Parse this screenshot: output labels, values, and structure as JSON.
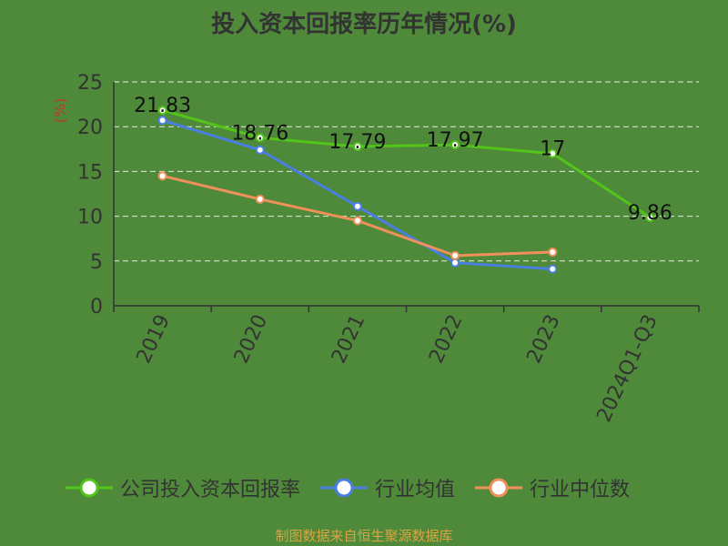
{
  "chart_data": {
    "type": "line",
    "title": "投入资本回报率历年情况(%)",
    "ylabel": "(%)",
    "xlabel": "",
    "categories": [
      "2019",
      "2020",
      "2021",
      "2022",
      "2023",
      "2024Q1-Q3"
    ],
    "ylim": [
      0,
      25
    ],
    "yticks": [
      0,
      5,
      10,
      15,
      20,
      25
    ],
    "grid": true,
    "legend_position": "bottom",
    "series": [
      {
        "name": "公司投入资本回报率",
        "values": [
          21.83,
          18.76,
          17.79,
          17.97,
          17,
          9.86
        ],
        "color": "#52c41a",
        "labels": [
          "21.83",
          "18.76",
          "17.79",
          "17.97",
          "17",
          "9.86"
        ]
      },
      {
        "name": "行业均值",
        "values": [
          20.7,
          17.4,
          11.1,
          4.8,
          4.1,
          null
        ],
        "color": "#4a7fe0"
      },
      {
        "name": "行业中位数",
        "values": [
          14.5,
          11.9,
          9.5,
          5.6,
          6.0,
          null
        ],
        "color": "#f0905a"
      }
    ]
  },
  "footer": {
    "source": "制图数据来自恒生聚源数据库"
  }
}
